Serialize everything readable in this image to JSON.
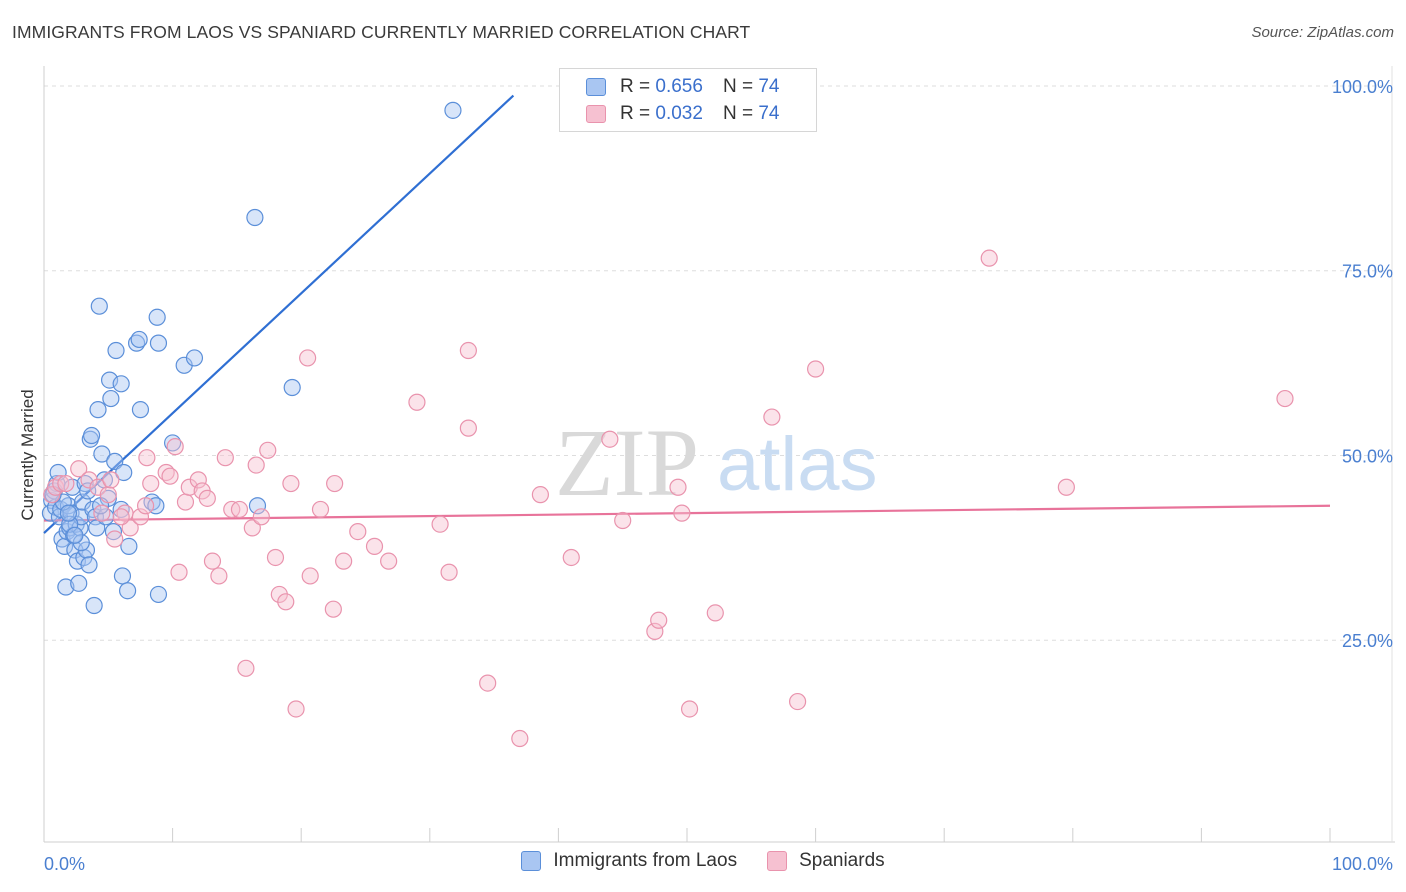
{
  "header": {
    "title": "IMMIGRANTS FROM LAOS VS SPANIARD CURRENTLY MARRIED CORRELATION CHART",
    "source": "Source: ZipAtlas.com"
  },
  "legend": {
    "series": [
      {
        "r_label": "R =",
        "r_value": "0.656",
        "n_label": "N =",
        "n_value": "74"
      },
      {
        "r_label": "R =",
        "r_value": "0.032",
        "n_label": "N =",
        "n_value": "74"
      }
    ]
  },
  "colors": {
    "blue_fill": "#a9c6f2",
    "blue_stroke": "#5b8fd9",
    "blue_line": "#2f6fd3",
    "pink_fill": "#f6c1d1",
    "pink_stroke": "#e993ad",
    "pink_line": "#e8739a",
    "grid": "#dddddd",
    "tick_text": "#4a7fd0"
  },
  "chart_data": {
    "type": "scatter",
    "title": "IMMIGRANTS FROM LAOS VS SPANIARD CURRENTLY MARRIED CORRELATION CHART",
    "xlabel": "",
    "ylabel": "Currently Married",
    "xlim": [
      0,
      100
    ],
    "ylim": [
      0,
      105
    ],
    "x_tick_labels": [
      "0.0%",
      "100.0%"
    ],
    "y_ticks": [
      25,
      50,
      75,
      100
    ],
    "y_tick_labels": [
      "25.0%",
      "50.0%",
      "75.0%",
      "100.0%"
    ],
    "grid": true,
    "watermark": "ZIPatlas",
    "series": [
      {
        "name": "Immigrants from Laos",
        "color": "blue",
        "trend": {
          "x": [
            0,
            36.5
          ],
          "y": [
            41.8,
            101.0
          ]
        },
        "points": [
          [
            0.6,
            46.2
          ],
          [
            0.5,
            44.5
          ],
          [
            0.9,
            45.3
          ],
          [
            0.8,
            47.5
          ],
          [
            1.0,
            48.5
          ],
          [
            1.1,
            50.0
          ],
          [
            1.2,
            44.0
          ],
          [
            1.3,
            45.0
          ],
          [
            1.4,
            41.0
          ],
          [
            1.6,
            40.0
          ],
          [
            1.7,
            34.5
          ],
          [
            1.8,
            42.0
          ],
          [
            1.9,
            45.5
          ],
          [
            2.0,
            42.5
          ],
          [
            2.1,
            44.5
          ],
          [
            2.2,
            48.0
          ],
          [
            2.3,
            41.5
          ],
          [
            2.4,
            39.5
          ],
          [
            2.5,
            43.0
          ],
          [
            2.6,
            38.0
          ],
          [
            2.7,
            35.0
          ],
          [
            2.8,
            42.5
          ],
          [
            2.9,
            44.0
          ],
          [
            3.0,
            46.0
          ],
          [
            3.2,
            48.5
          ],
          [
            3.1,
            38.5
          ],
          [
            3.3,
            39.5
          ],
          [
            3.5,
            37.5
          ],
          [
            3.6,
            54.5
          ],
          [
            3.7,
            55.0
          ],
          [
            3.8,
            45.0
          ],
          [
            3.9,
            32.0
          ],
          [
            4.0,
            44.0
          ],
          [
            4.1,
            42.5
          ],
          [
            4.2,
            58.5
          ],
          [
            4.3,
            72.5
          ],
          [
            4.5,
            52.5
          ],
          [
            4.7,
            49.0
          ],
          [
            4.8,
            44.0
          ],
          [
            5.0,
            46.5
          ],
          [
            5.1,
            62.5
          ],
          [
            5.2,
            60.0
          ],
          [
            5.4,
            42.0
          ],
          [
            5.5,
            51.5
          ],
          [
            5.6,
            66.5
          ],
          [
            6.0,
            62.0
          ],
          [
            6.1,
            36.0
          ],
          [
            6.2,
            50.0
          ],
          [
            6.5,
            34.0
          ],
          [
            6.6,
            40.0
          ],
          [
            7.2,
            67.5
          ],
          [
            7.4,
            68.0
          ],
          [
            7.5,
            58.5
          ],
          [
            8.4,
            46.0
          ],
          [
            8.7,
            45.5
          ],
          [
            8.8,
            71.0
          ],
          [
            8.9,
            67.5
          ],
          [
            8.9,
            33.5
          ],
          [
            10.0,
            54.0
          ],
          [
            10.9,
            64.5
          ],
          [
            11.7,
            65.5
          ],
          [
            16.4,
            84.5
          ],
          [
            16.6,
            45.5
          ],
          [
            19.3,
            61.5
          ],
          [
            31.8,
            99.0
          ],
          [
            2.0,
            43.0
          ],
          [
            1.5,
            46.0
          ],
          [
            3.4,
            47.5
          ],
          [
            2.9,
            40.5
          ],
          [
            0.7,
            47.0
          ],
          [
            4.4,
            45.5
          ],
          [
            1.9,
            44.5
          ],
          [
            6.0,
            45.0
          ],
          [
            2.4,
            41.5
          ]
        ]
      },
      {
        "name": "Spaniards",
        "color": "pink",
        "trend": {
          "x": [
            0,
            100
          ],
          "y": [
            43.5,
            45.5
          ]
        },
        "points": [
          [
            0.6,
            47.0
          ],
          [
            0.9,
            48.0
          ],
          [
            1.3,
            48.5
          ],
          [
            1.7,
            48.5
          ],
          [
            2.7,
            50.5
          ],
          [
            3.5,
            49.0
          ],
          [
            4.2,
            48.0
          ],
          [
            4.5,
            44.5
          ],
          [
            5.0,
            47.0
          ],
          [
            5.5,
            41.0
          ],
          [
            6.3,
            44.5
          ],
          [
            6.7,
            42.5
          ],
          [
            7.5,
            44.0
          ],
          [
            7.9,
            45.5
          ],
          [
            8.0,
            52.0
          ],
          [
            8.3,
            48.5
          ],
          [
            9.5,
            50.0
          ],
          [
            9.8,
            49.5
          ],
          [
            10.2,
            53.5
          ],
          [
            10.5,
            36.5
          ],
          [
            11.0,
            46.0
          ],
          [
            11.3,
            48.0
          ],
          [
            12.0,
            49.0
          ],
          [
            12.3,
            47.5
          ],
          [
            12.7,
            46.5
          ],
          [
            13.1,
            38.0
          ],
          [
            13.6,
            36.0
          ],
          [
            14.1,
            52.0
          ],
          [
            14.6,
            45.0
          ],
          [
            15.2,
            45.0
          ],
          [
            15.7,
            23.5
          ],
          [
            16.2,
            42.5
          ],
          [
            16.5,
            51.0
          ],
          [
            16.9,
            44.0
          ],
          [
            17.4,
            53.0
          ],
          [
            18.0,
            38.5
          ],
          [
            18.3,
            33.5
          ],
          [
            18.8,
            32.5
          ],
          [
            19.2,
            48.5
          ],
          [
            19.6,
            18.0
          ],
          [
            20.5,
            65.5
          ],
          [
            20.7,
            36.0
          ],
          [
            21.5,
            45.0
          ],
          [
            22.5,
            31.5
          ],
          [
            22.6,
            48.5
          ],
          [
            23.3,
            38.0
          ],
          [
            24.4,
            42.0
          ],
          [
            25.7,
            40.0
          ],
          [
            26.8,
            38.0
          ],
          [
            29.0,
            59.5
          ],
          [
            30.8,
            43.0
          ],
          [
            31.5,
            36.5
          ],
          [
            33.0,
            56.0
          ],
          [
            33.0,
            66.5
          ],
          [
            34.5,
            21.5
          ],
          [
            37.0,
            14.0
          ],
          [
            38.6,
            47.0
          ],
          [
            41.0,
            38.5
          ],
          [
            44.0,
            54.5
          ],
          [
            45.0,
            43.5
          ],
          [
            47.5,
            28.5
          ],
          [
            47.8,
            30.0
          ],
          [
            49.3,
            48.0
          ],
          [
            49.6,
            44.5
          ],
          [
            50.2,
            18.0
          ],
          [
            52.2,
            31.0
          ],
          [
            56.6,
            57.5
          ],
          [
            58.6,
            19.0
          ],
          [
            60.0,
            64.0
          ],
          [
            73.5,
            79.0
          ],
          [
            79.5,
            48.0
          ],
          [
            96.5,
            60.0
          ],
          [
            5.2,
            49.0
          ],
          [
            6.0,
            44.0
          ]
        ]
      }
    ]
  },
  "bottom_legend": {
    "items": [
      "Immigrants from Laos",
      "Spaniards"
    ]
  }
}
